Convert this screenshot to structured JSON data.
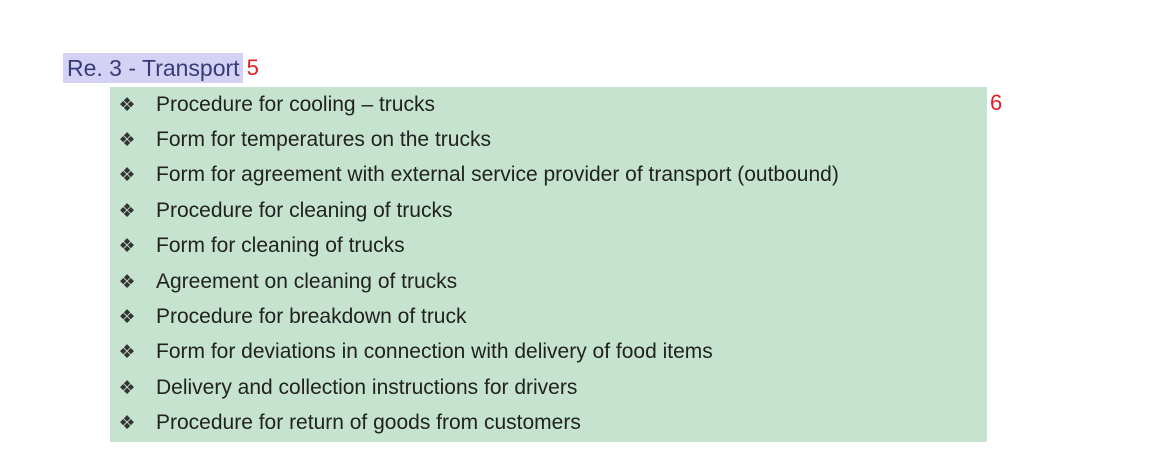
{
  "heading": {
    "title": "Re. 3 - Transport",
    "marker": "5"
  },
  "list": {
    "marker": "6",
    "bullet_icon": "diamond-four-dots-icon",
    "items": [
      "Procedure for cooling – trucks",
      "Form for temperatures on the trucks",
      "Form for agreement with external service provider of transport (outbound)",
      "Procedure for cleaning of trucks",
      "Form for cleaning of trucks",
      "Agreement on cleaning of trucks",
      "Procedure for breakdown of truck",
      "Form for deviations in connection with delivery of food items",
      "Delivery and collection instructions for drivers",
      "Procedure for return of goods from customers"
    ]
  },
  "colors": {
    "heading_highlight": "#d3d1f4",
    "list_highlight": "#c5e3cf",
    "marker_red": "#e02020"
  }
}
